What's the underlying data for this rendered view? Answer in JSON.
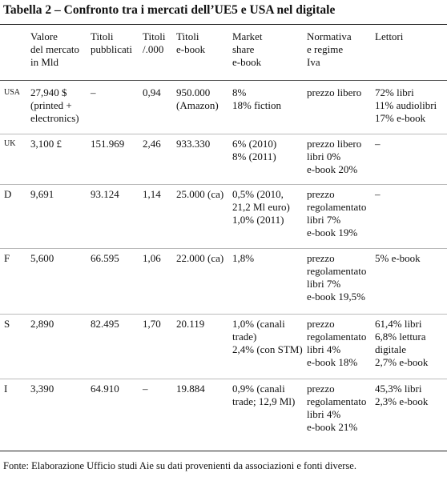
{
  "title": "Tabella 2 – Confronto tra i mercati dell’UE5 e USA nel digitale",
  "table": {
    "header": [
      [
        ""
      ],
      [
        "Valore",
        "del mercato",
        "in Mld"
      ],
      [
        "Titoli",
        "pubblicati"
      ],
      [
        "Titoli",
        "/.000"
      ],
      [
        "Titoli",
        "e-book"
      ],
      [
        "Market",
        "share",
        "e-book"
      ],
      [
        "Normativa",
        "e regime",
        "Iva"
      ],
      [
        "Lettori"
      ]
    ],
    "rows": [
      [
        [
          "USA"
        ],
        [
          "27,940 $",
          "(printed +",
          "electronics)"
        ],
        [
          "–"
        ],
        [
          "0,94"
        ],
        [
          "950.000",
          "(Amazon)"
        ],
        [
          "8%",
          "18% fiction"
        ],
        [
          "prezzo libero"
        ],
        [
          "72% libri",
          "11% audiolibri",
          "17% e-book"
        ]
      ],
      [
        [
          "UK"
        ],
        [
          "3,100 £"
        ],
        [
          "151.969"
        ],
        [
          "2,46"
        ],
        [
          "933.330"
        ],
        [
          "6% (2010)",
          "8% (2011)"
        ],
        [
          "prezzo libero",
          "libri 0%",
          "e-book 20%"
        ],
        [
          "–"
        ]
      ],
      [
        [
          "D"
        ],
        [
          "9,691"
        ],
        [
          "93.124"
        ],
        [
          "1,14"
        ],
        [
          "25.000 (ca)"
        ],
        [
          "0,5% (2010,",
          "21,2 Ml euro)",
          "1,0% (2011)"
        ],
        [
          "prezzo",
          "regolamentato",
          "libri 7%",
          "e-book 19%"
        ],
        [
          "–"
        ]
      ],
      [
        [
          "F"
        ],
        [
          "5,600"
        ],
        [
          "66.595"
        ],
        [
          "1,06"
        ],
        [
          "22.000 (ca)"
        ],
        [
          "1,8%"
        ],
        [
          "prezzo",
          "regolamentato",
          "libri 7%",
          "e-book 19,5%"
        ],
        [
          "5% e-book"
        ]
      ],
      [
        [
          "S"
        ],
        [
          "2,890"
        ],
        [
          "82.495"
        ],
        [
          "1,70"
        ],
        [
          "20.119"
        ],
        [
          "1,0% (canali",
          "trade)",
          "2,4% (con STM)"
        ],
        [
          "prezzo",
          "regolamentato",
          "libri 4%",
          "e-book 18%"
        ],
        [
          "61,4% libri",
          "6,8% lettura",
          "digitale",
          "2,7% e-book"
        ]
      ],
      [
        [
          "I"
        ],
        [
          "3,390"
        ],
        [
          "64.910"
        ],
        [
          "–"
        ],
        [
          "19.884"
        ],
        [
          "0,9% (canali",
          "trade; 12,9 Ml)"
        ],
        [
          "prezzo",
          "regolamentato",
          "libri 4%",
          "e-book 21%"
        ],
        [
          "45,3% libri",
          "2,3% e-book"
        ]
      ]
    ]
  },
  "footnote": "Fonte: Elaborazione Ufficio studi Aie su dati provenienti da associazioni e fonti diverse."
}
